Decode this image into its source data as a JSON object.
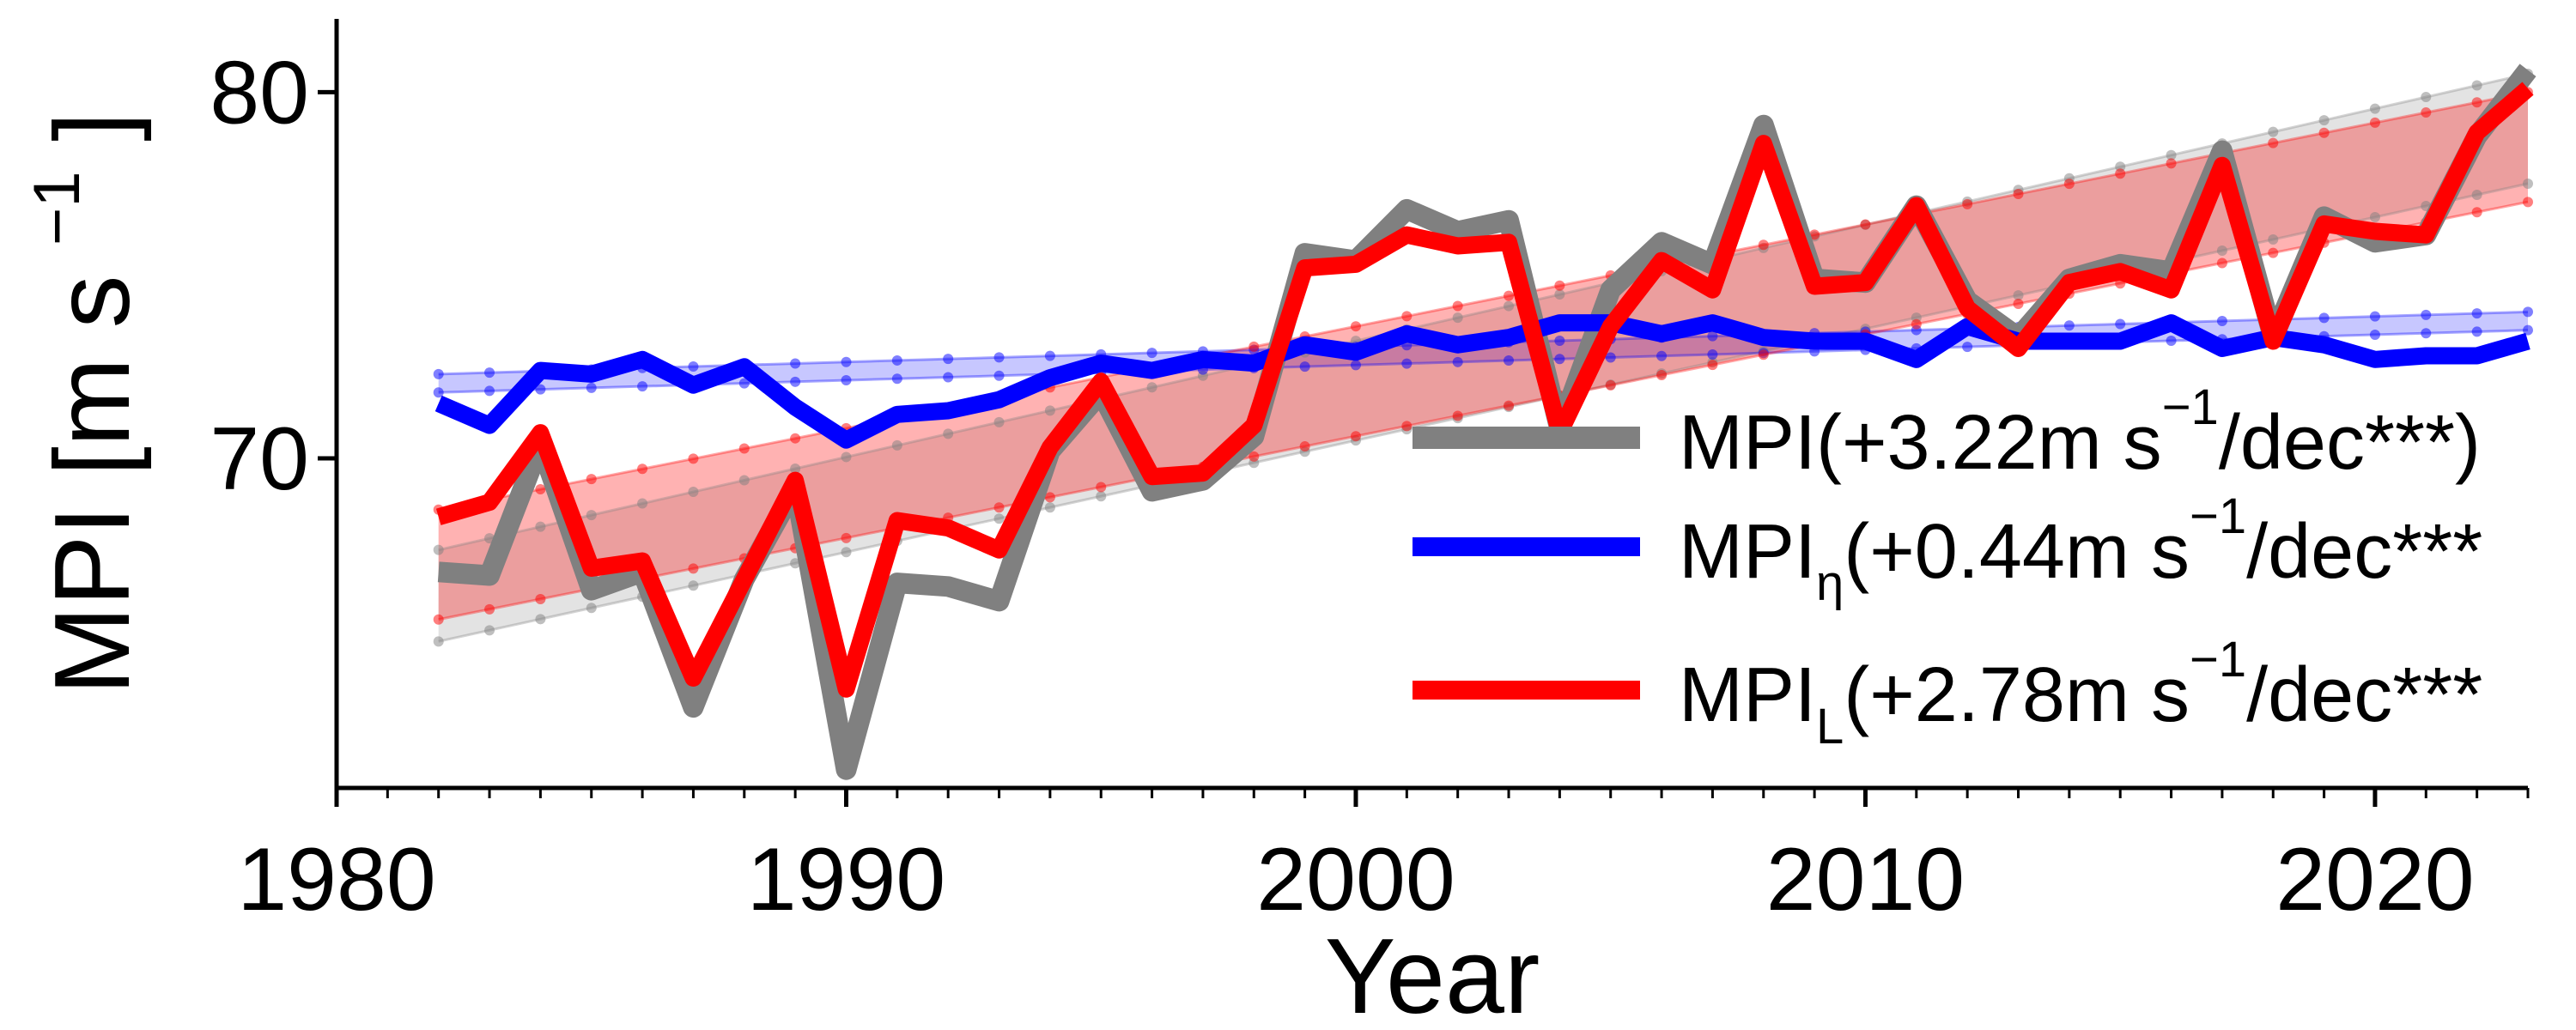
{
  "chart_data": {
    "type": "line",
    "xlabel": "Year",
    "ylabel": "MPI [m s",
    "ylabel_sup": "−1",
    "ylabel_close": "]",
    "xlim": [
      1980,
      2023
    ],
    "ylim": [
      61,
      82
    ],
    "xticks": [
      1980,
      1990,
      2000,
      2010,
      2020
    ],
    "yticks": [
      70,
      80
    ],
    "x": [
      1982,
      1983,
      1984,
      1985,
      1986,
      1987,
      1988,
      1989,
      1990,
      1991,
      1992,
      1993,
      1994,
      1995,
      1996,
      1997,
      1998,
      1999,
      2000,
      2001,
      2002,
      2003,
      2004,
      2005,
      2006,
      2007,
      2008,
      2009,
      2010,
      2011,
      2012,
      2013,
      2014,
      2015,
      2016,
      2017,
      2018,
      2019,
      2020,
      2021,
      2022,
      2023
    ],
    "series": [
      {
        "name": "MPI",
        "color": "#808080",
        "trend_text": "(+3.22m s",
        "trend_sup": "−1",
        "trend_tail": "/dec***)",
        "values": [
          66.9,
          66.8,
          70.4,
          66.4,
          66.9,
          63.2,
          66.7,
          69.2,
          61.5,
          66.6,
          66.5,
          66.1,
          70.2,
          71.8,
          69.1,
          69.4,
          70.6,
          75.6,
          75.4,
          76.8,
          76.2,
          76.5,
          70.8,
          74.6,
          75.9,
          75.3,
          79.1,
          74.9,
          74.8,
          76.9,
          74.3,
          73.3,
          74.9,
          75.3,
          75.1,
          78.4,
          73.3,
          76.6,
          75.9,
          76.1,
          78.8,
          80.6
        ],
        "trend_start": [
          65.0,
          67.5
        ],
        "trend_end": [
          77.5,
          80.5
        ]
      },
      {
        "name": "MPI",
        "subscript": "η",
        "color": "#0000ff",
        "trend_text": "(+0.44m s",
        "trend_sup": "−1",
        "trend_tail": "/dec***",
        "values": [
          71.5,
          70.9,
          72.4,
          72.3,
          72.7,
          72.0,
          72.5,
          71.4,
          70.5,
          71.2,
          71.3,
          71.6,
          72.2,
          72.6,
          72.4,
          72.7,
          72.6,
          73.1,
          72.9,
          73.4,
          73.1,
          73.3,
          73.7,
          73.7,
          73.4,
          73.7,
          73.3,
          73.2,
          73.2,
          72.7,
          73.6,
          73.2,
          73.2,
          73.2,
          73.7,
          73.0,
          73.3,
          73.1,
          72.7,
          72.8,
          72.8,
          73.2
        ],
        "trend_start": [
          71.8,
          72.3
        ],
        "trend_end": [
          73.5,
          74.0
        ]
      },
      {
        "name": "MPI",
        "subscript": "L",
        "color": "#ff0000",
        "trend_text": "(+2.78m s",
        "trend_sup": "−1",
        "trend_tail": "/dec***",
        "values": [
          68.4,
          68.8,
          70.7,
          67.0,
          67.2,
          64.0,
          66.7,
          69.4,
          63.7,
          68.3,
          68.1,
          67.5,
          70.3,
          72.1,
          69.5,
          69.6,
          70.9,
          75.2,
          75.3,
          76.1,
          75.8,
          75.9,
          70.7,
          73.6,
          75.4,
          74.6,
          78.6,
          74.7,
          74.8,
          76.9,
          74.1,
          73.0,
          74.8,
          75.1,
          74.6,
          78.0,
          73.2,
          76.4,
          76.2,
          76.1,
          78.9,
          80.1
        ],
        "trend_start": [
          65.6,
          68.6
        ],
        "trend_end": [
          77.0,
          80.0
        ]
      }
    ],
    "legend_position": "right"
  }
}
